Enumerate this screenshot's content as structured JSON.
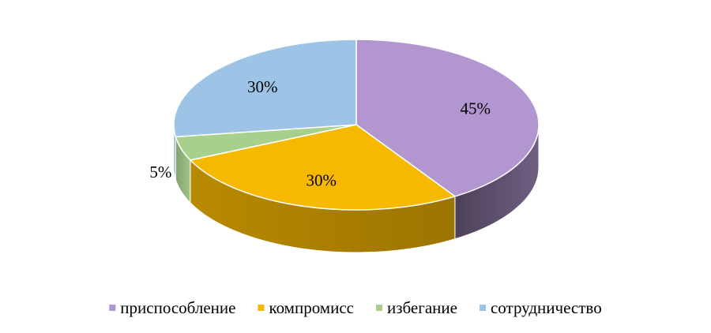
{
  "chart_data": {
    "type": "pie",
    "style": "3d",
    "categories": [
      "приспособление",
      "компромисс",
      "избегание",
      "сотрудничество"
    ],
    "values": [
      45,
      30,
      5,
      30
    ],
    "data_labels": [
      "45%",
      "30%",
      "5%",
      "30%"
    ],
    "colors": [
      "#b196cf",
      "#f7b800",
      "#a8d08d",
      "#9dc3e6"
    ],
    "title": "",
    "legend_position": "bottom"
  }
}
